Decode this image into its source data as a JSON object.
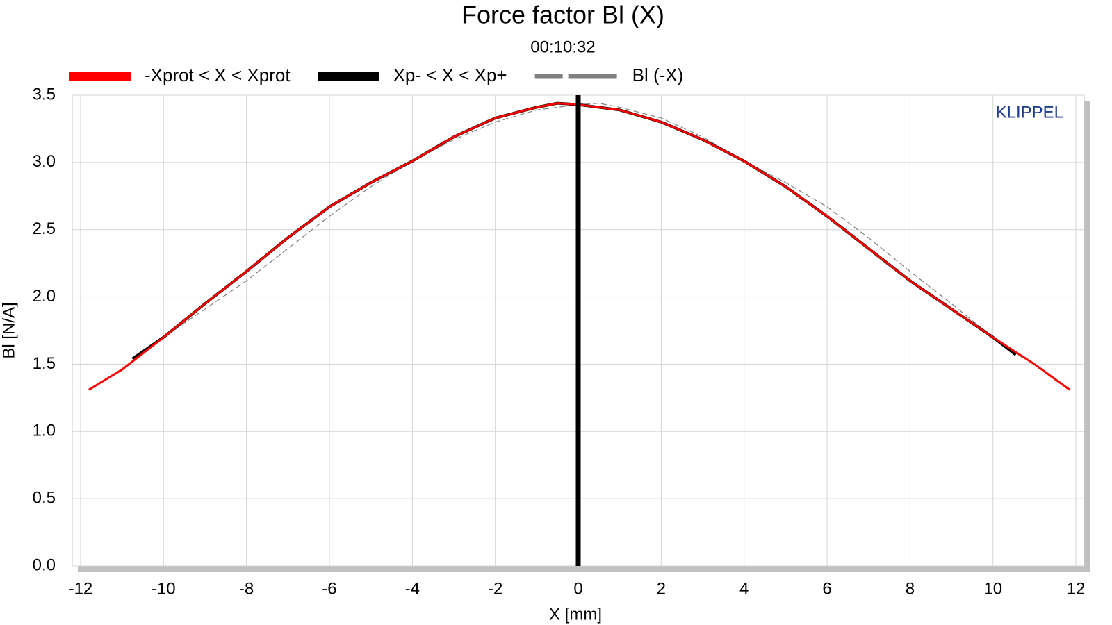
{
  "chart_data": {
    "type": "line",
    "title": "Force factor Bl (X)",
    "subtitle": "00:10:32",
    "xlabel": "X [mm]",
    "ylabel": "Bl [N/A]",
    "watermark": "KLIPPEL",
    "xlim": [
      -12.2,
      12.2
    ],
    "ylim": [
      0,
      3.5
    ],
    "xticks": [
      -12,
      -10,
      -8,
      -6,
      -4,
      -2,
      0,
      2,
      4,
      6,
      8,
      10,
      12
    ],
    "yticks": [
      {
        "value": 0,
        "label": "0.0"
      },
      0.5,
      {
        "value": 1,
        "label": "1.0"
      },
      1.5,
      {
        "value": 2,
        "label": "2.0"
      },
      2.5,
      {
        "value": 3,
        "label": "3.0"
      },
      3.5
    ],
    "grid": true,
    "vertical_line_x": 0,
    "series": [
      {
        "name": "-Xprot < X < Xprot",
        "color": "#ff0000",
        "width": 3,
        "dashed": false,
        "x": [
          -11.8,
          -11,
          -10,
          -9,
          -8,
          -7,
          -6,
          -5,
          -4,
          -3,
          -2,
          -1,
          -0.5,
          0,
          1,
          2,
          3,
          4,
          5,
          6,
          7,
          8,
          9,
          10,
          11,
          11.85
        ],
        "values": [
          1.31,
          1.46,
          1.7,
          1.95,
          2.19,
          2.44,
          2.67,
          2.85,
          3.01,
          3.19,
          3.33,
          3.41,
          3.44,
          3.43,
          3.39,
          3.3,
          3.17,
          3.01,
          2.82,
          2.6,
          2.36,
          2.12,
          1.91,
          1.7,
          1.5,
          1.31
        ]
      },
      {
        "name": "Xp- < X < Xp+",
        "color": "#000000",
        "width": 4,
        "dashed": false,
        "x": [
          -10.75,
          -10,
          -9,
          -8,
          -7,
          -6,
          -5,
          -4,
          -3,
          -2,
          -1,
          -0.5,
          0,
          1,
          2,
          3,
          4,
          5,
          6,
          7,
          8,
          9,
          10,
          10.55
        ],
        "values": [
          1.54,
          1.7,
          1.95,
          2.19,
          2.44,
          2.67,
          2.85,
          3.01,
          3.19,
          3.33,
          3.41,
          3.44,
          3.43,
          3.39,
          3.3,
          3.17,
          3.01,
          2.82,
          2.6,
          2.36,
          2.12,
          1.91,
          1.7,
          1.57
        ]
      },
      {
        "name": "Bl (-X)",
        "color": "#808080",
        "width": 1.2,
        "dashed": true,
        "x": [
          -10.55,
          -10,
          -9,
          -8,
          -7,
          -6,
          -5,
          -4,
          -3,
          -2,
          -1,
          0,
          0.5,
          1,
          2,
          3,
          4,
          5,
          6,
          7,
          8,
          9,
          10,
          10.75
        ],
        "values": [
          1.57,
          1.7,
          1.91,
          2.12,
          2.36,
          2.6,
          2.82,
          3.01,
          3.17,
          3.3,
          3.39,
          3.43,
          3.44,
          3.41,
          3.33,
          3.19,
          3.01,
          2.85,
          2.67,
          2.44,
          2.19,
          1.95,
          1.7,
          1.54
        ]
      }
    ]
  }
}
